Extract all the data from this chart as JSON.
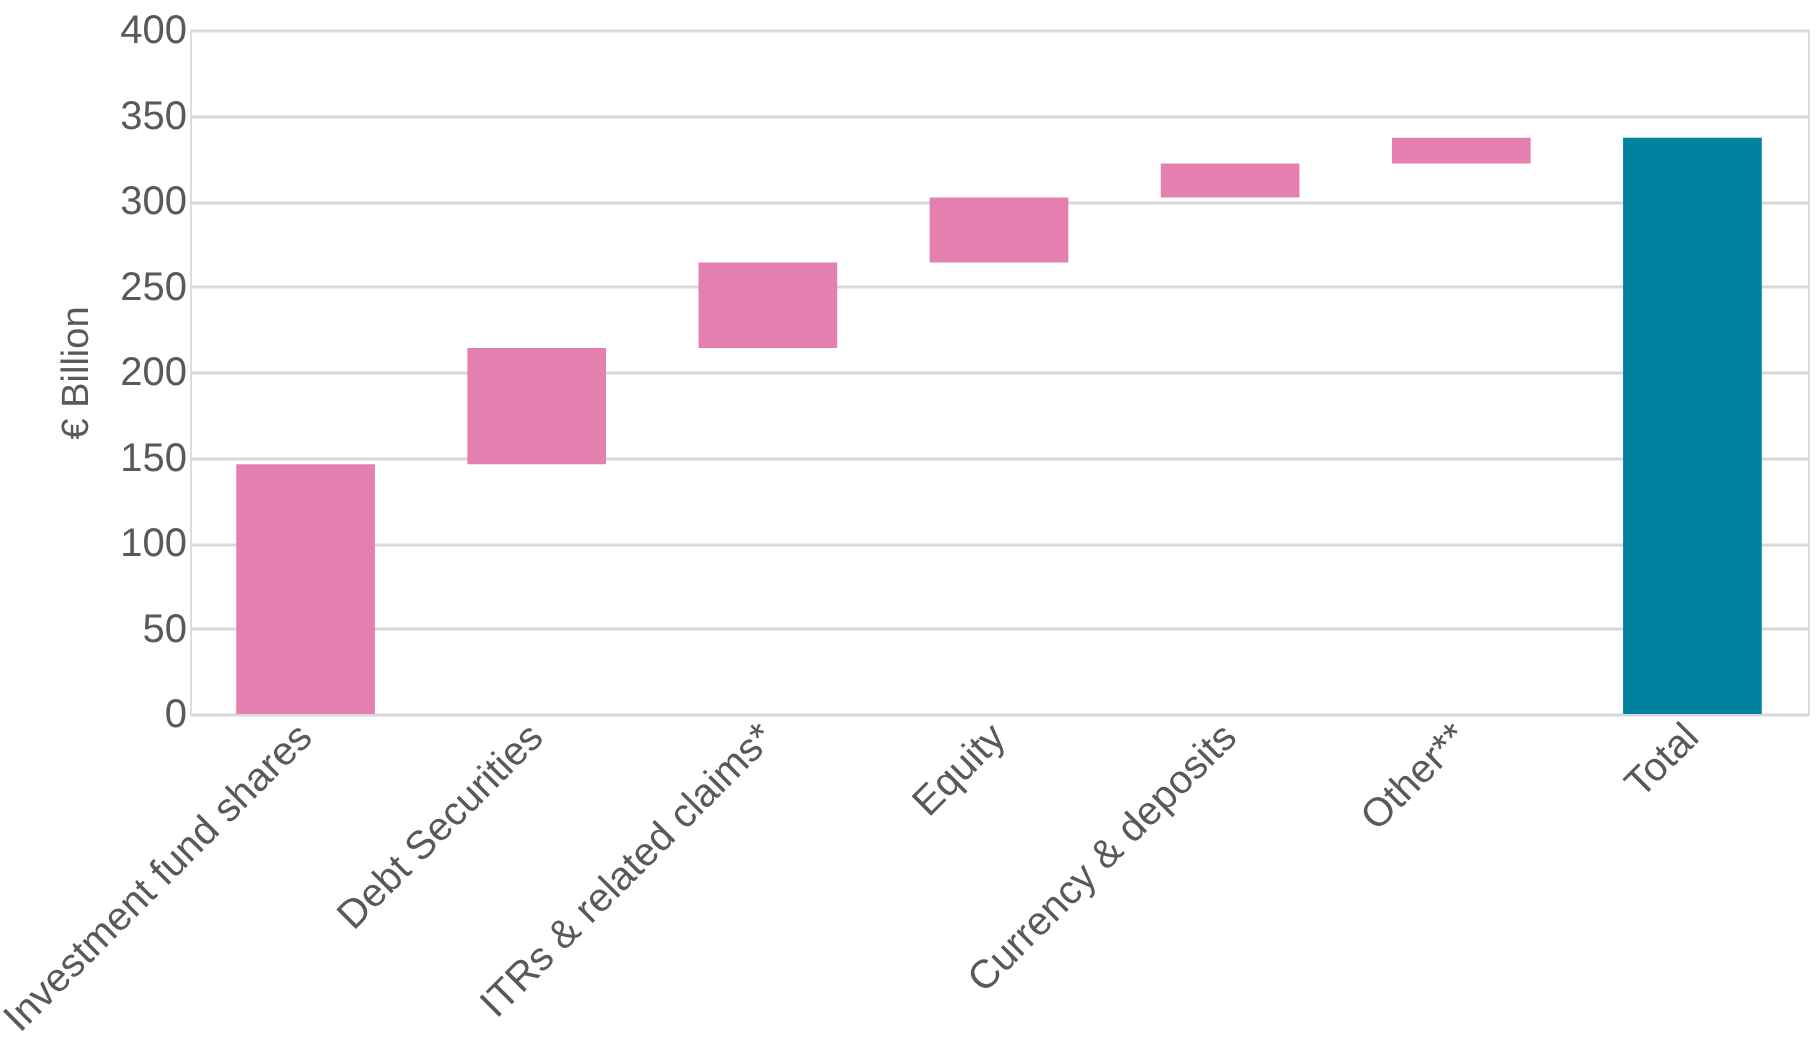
{
  "chart_data": {
    "type": "bar",
    "ylabel": "€ Billion",
    "categories": [
      "Investment fund shares",
      "Debt Securities",
      "ITRs & related claims*",
      "Equity",
      "Currency & deposits",
      "Other**",
      "Total"
    ],
    "values": [
      146,
      68,
      50,
      38,
      20,
      15,
      337
    ],
    "base": [
      0,
      146,
      214,
      264,
      302,
      322,
      0
    ],
    "colors": [
      "#e380b0",
      "#e380b0",
      "#e380b0",
      "#e380b0",
      "#e380b0",
      "#e380b0",
      "#00829e"
    ],
    "ylim": [
      0,
      400
    ],
    "yticks": [
      0,
      50,
      100,
      150,
      200,
      250,
      300,
      350,
      400
    ],
    "grid": "y"
  }
}
